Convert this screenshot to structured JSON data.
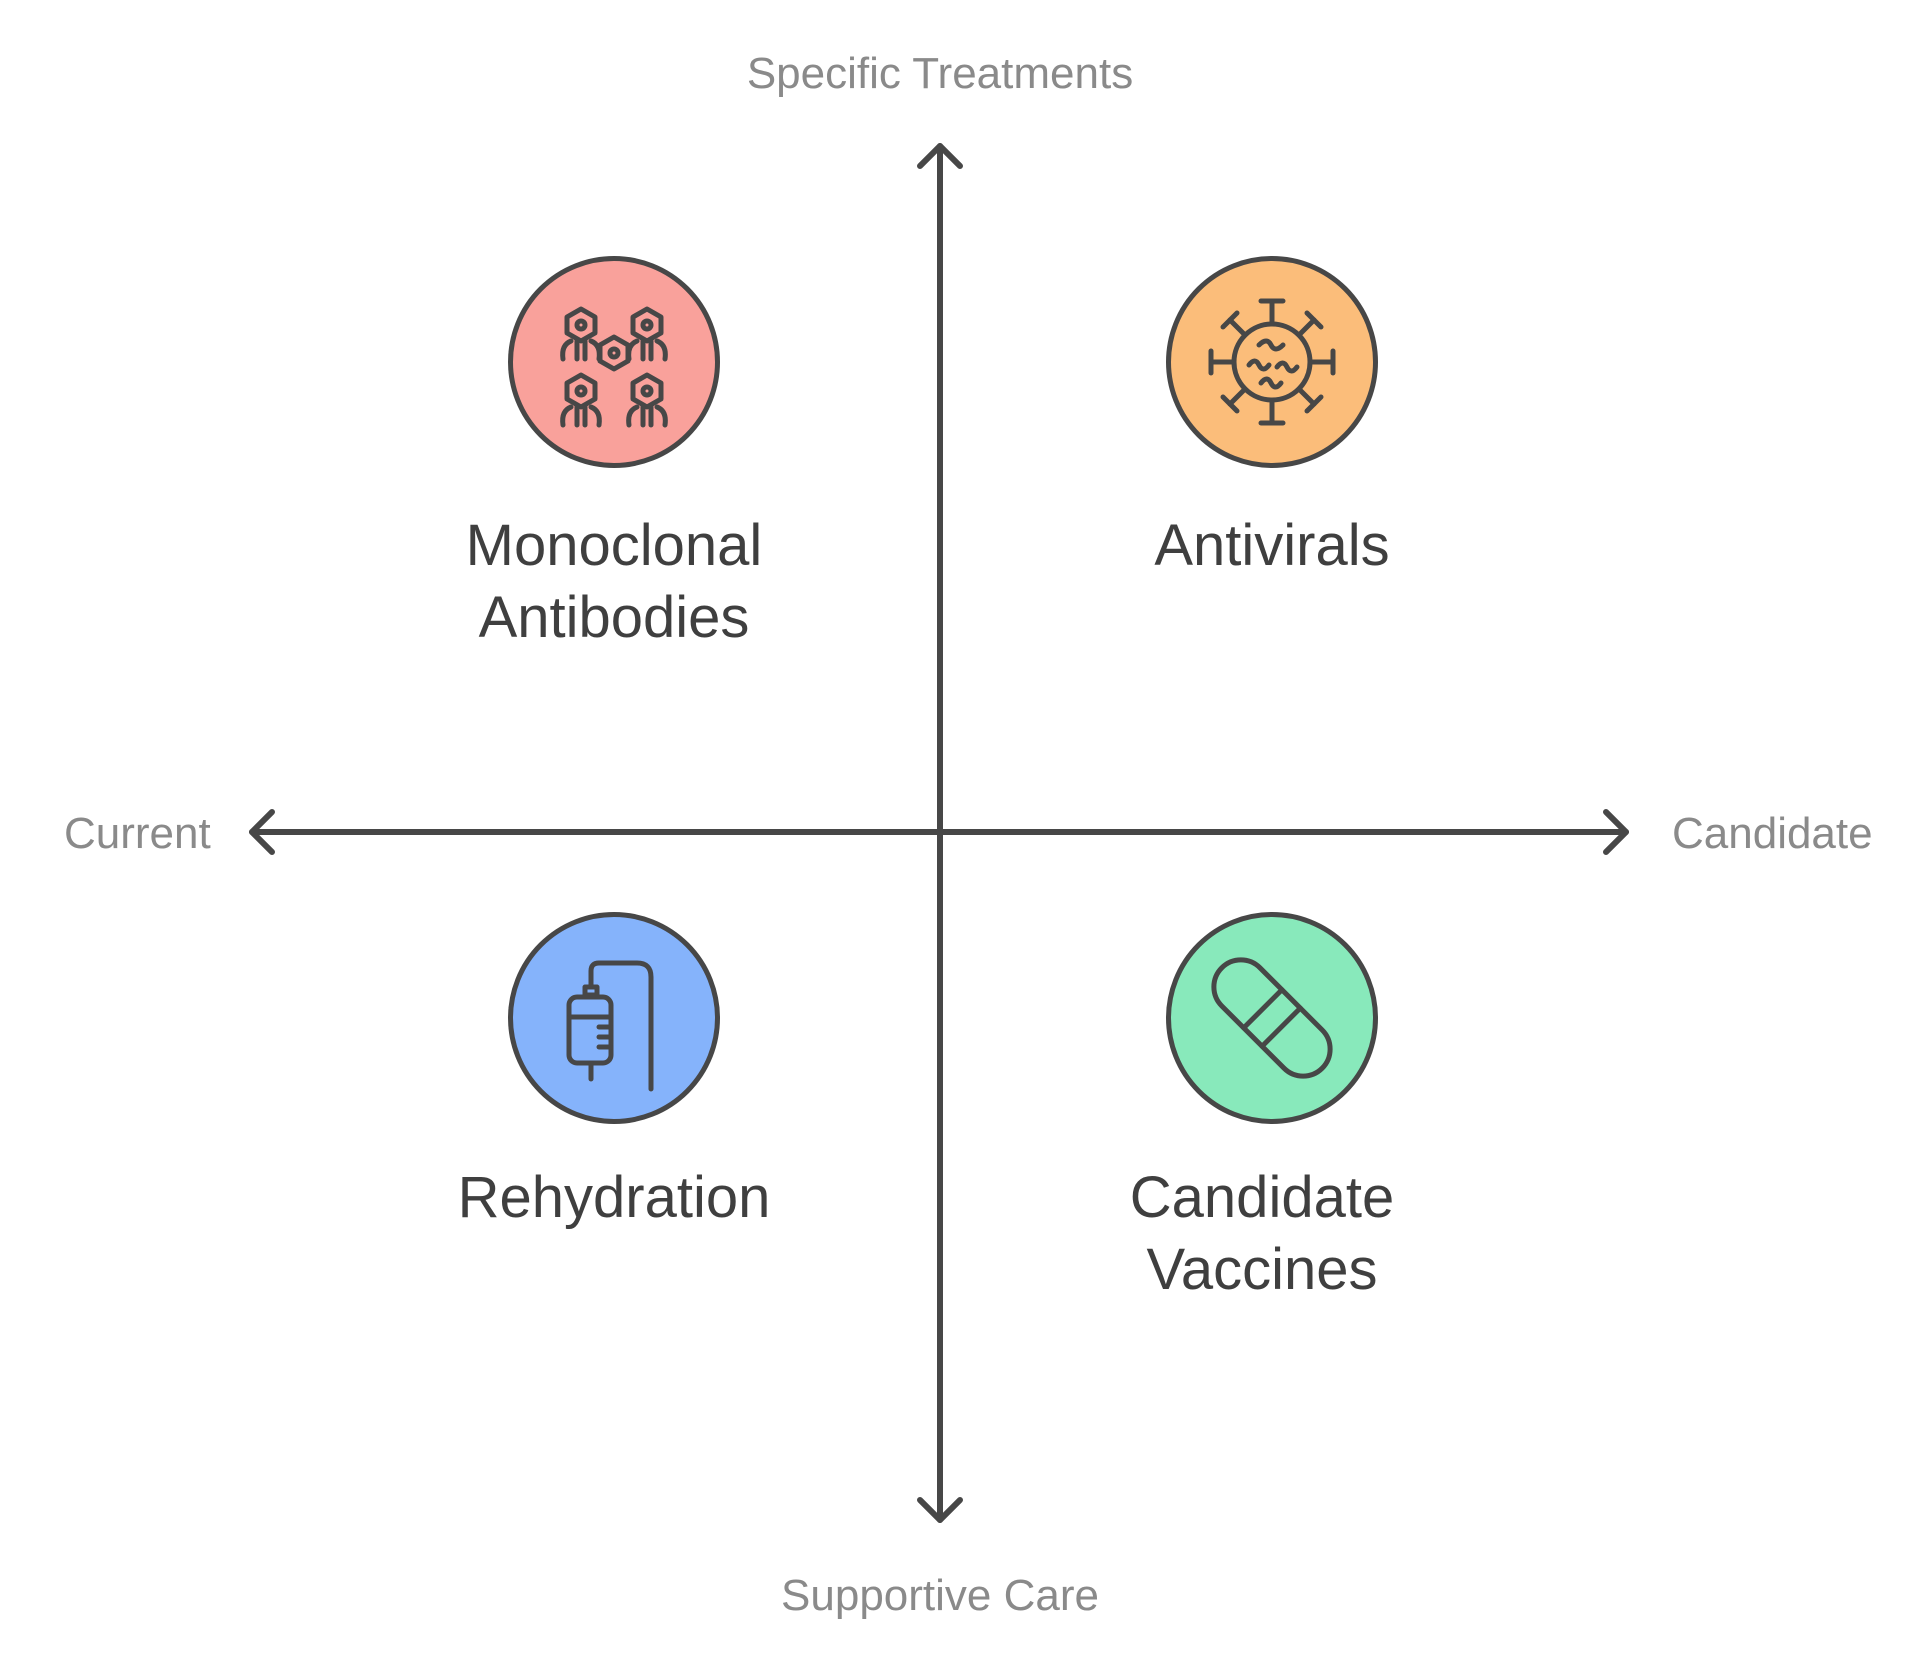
{
  "axes": {
    "top": "Specific Treatments",
    "bottom": "Supportive Care",
    "left": "Current",
    "right": "Candidate"
  },
  "quadrants": [
    {
      "id": "top-left",
      "title_lines": [
        "Monoclonal",
        "Antibodies"
      ],
      "icon": "antibody-cells-icon",
      "color": "#f9a19b"
    },
    {
      "id": "top-right",
      "title_lines": [
        "Antivirals"
      ],
      "icon": "virus-icon",
      "color": "#fbbd7a"
    },
    {
      "id": "bottom-left",
      "title_lines": [
        "Rehydration"
      ],
      "icon": "iv-drip-icon",
      "color": "#85b3fb"
    },
    {
      "id": "bottom-right",
      "title_lines": [
        "Candidate",
        "Vaccines"
      ],
      "icon": "capsule-pill-icon",
      "color": "#88e9bb"
    }
  ]
}
